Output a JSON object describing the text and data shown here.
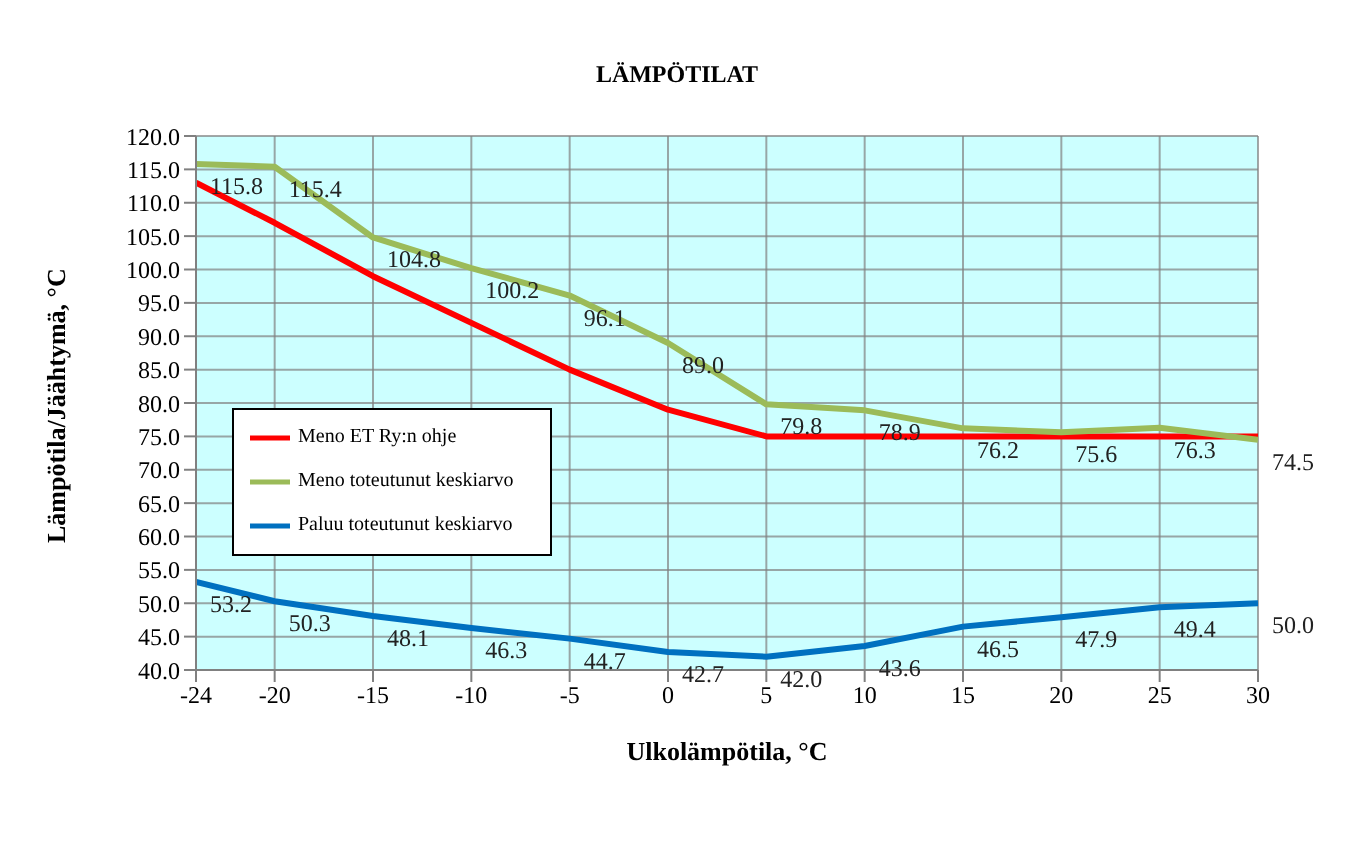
{
  "chart_data": {
    "type": "line",
    "title": "LÄMPÖTILAT",
    "xlabel": "Ulkolämpötila, °C",
    "ylabel": "Lämpötila/Jäähtymä, °C",
    "x": [
      -24,
      -20,
      -15,
      -10,
      -5,
      0,
      5,
      10,
      15,
      20,
      25,
      30
    ],
    "series": [
      {
        "name": "Meno ET Ry:n ohje",
        "color": "#ff0000",
        "values": [
          113,
          107,
          99,
          92,
          85,
          79,
          75,
          75,
          75,
          75,
          75,
          75
        ]
      },
      {
        "name": "Paluu toteutunut keskiarvo",
        "color": "#0070c0",
        "values": [
          53.2,
          50.3,
          48.1,
          46.3,
          44.7,
          42.7,
          42.0,
          43.6,
          46.5,
          47.9,
          49.4,
          50.0
        ],
        "value_labels": [
          "53.2",
          "50.3",
          "48.1",
          "46.3",
          "44.7",
          "42.7",
          "42.0",
          "43.6",
          "46.5",
          "47.9",
          "49.4",
          "50.0"
        ]
      },
      {
        "name": "Meno toteutunut keskiarvo",
        "color": "#9bbb59",
        "values": [
          115.8,
          115.4,
          104.8,
          100.2,
          96.1,
          89.0,
          79.8,
          78.9,
          76.2,
          75.6,
          76.3,
          74.5
        ],
        "value_labels": [
          "115.8",
          "115.4",
          "104.8",
          "100.2",
          "96.1",
          "89.0",
          "79.8",
          "78.9",
          "76.2",
          "75.6",
          "76.3",
          "74.5"
        ]
      }
    ],
    "xlim": [
      -24,
      30
    ],
    "xticks": [
      -24,
      -20,
      -15,
      -10,
      -5,
      0,
      5,
      10,
      15,
      20,
      25,
      30
    ],
    "ylim": [
      40,
      120
    ],
    "yticks": [
      {
        "value": 40,
        "label": "40.0"
      },
      {
        "value": 45,
        "label": "45.0"
      },
      {
        "value": 50,
        "label": "50.0"
      },
      {
        "value": 55,
        "label": "55.0"
      },
      {
        "value": 60,
        "label": "60.0"
      },
      {
        "value": 65,
        "label": "65.0"
      },
      {
        "value": 70,
        "label": "70.0"
      },
      {
        "value": 75,
        "label": "75.0"
      },
      {
        "value": 80,
        "label": "80.0"
      },
      {
        "value": 85,
        "label": "85.0"
      },
      {
        "value": 90,
        "label": "90.0"
      },
      {
        "value": 95,
        "label": "95.0"
      },
      {
        "value": 100,
        "label": "100.0"
      },
      {
        "value": 105,
        "label": "105.0"
      },
      {
        "value": 110,
        "label": "110.0"
      },
      {
        "value": 115,
        "label": "115.0"
      },
      {
        "value": 120,
        "label": "120.0"
      }
    ],
    "grid": true,
    "legend": "left",
    "marker": "none",
    "line_style": "solid"
  }
}
